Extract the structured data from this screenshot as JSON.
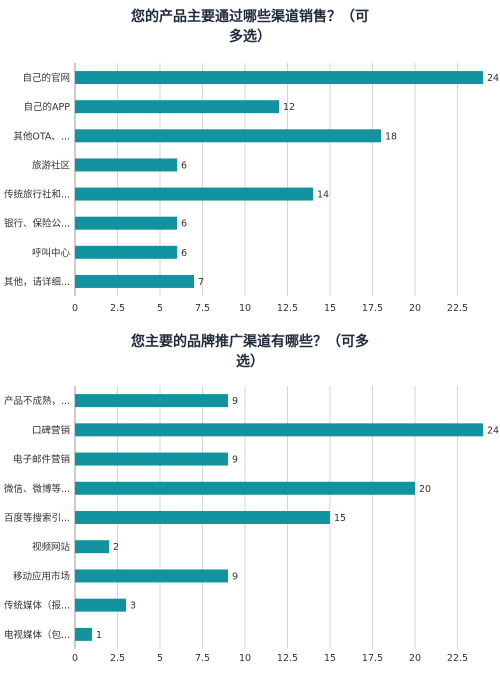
{
  "chart_data": [
    {
      "type": "bar",
      "orientation": "horizontal",
      "title_lines": [
        "您的产品主要通过哪些渠道销售？（可",
        "多选）"
      ],
      "categories": [
        "自己的官网",
        "自己的APP",
        "其他OTA、...",
        "旅游社区",
        "传统旅行社和...",
        "银行、保险公...",
        "呼叫中心",
        "其他，请详细..."
      ],
      "values": [
        24,
        12,
        18,
        6,
        14,
        6,
        6,
        7
      ],
      "xlim": [
        0,
        24
      ],
      "xticks": [
        "0",
        "2.5",
        "5",
        "7.5",
        "10",
        "12.5",
        "15",
        "17.5",
        "20",
        "22.5"
      ],
      "grid": "vertical",
      "bar_color": "#1393a0",
      "data_labels": true
    },
    {
      "type": "bar",
      "orientation": "horizontal",
      "title_lines": [
        "您主要的品牌推广渠道有哪些？（可多",
        "选）"
      ],
      "categories": [
        "产品不成熟，...",
        "口碑营销",
        "电子邮件营销",
        "微信、微博等...",
        "百度等搜索引...",
        "视频网站",
        "移动应用市场",
        "传统媒体（报...",
        "电视媒体（包..."
      ],
      "values": [
        9,
        24,
        9,
        20,
        15,
        2,
        9,
        3,
        1
      ],
      "xlim": [
        0,
        24
      ],
      "xticks": [
        "0",
        "2.5",
        "5",
        "7.5",
        "10",
        "12.5",
        "15",
        "17.5",
        "20",
        "22.5"
      ],
      "grid": "vertical",
      "bar_color": "#1393a0",
      "data_labels": true
    }
  ]
}
